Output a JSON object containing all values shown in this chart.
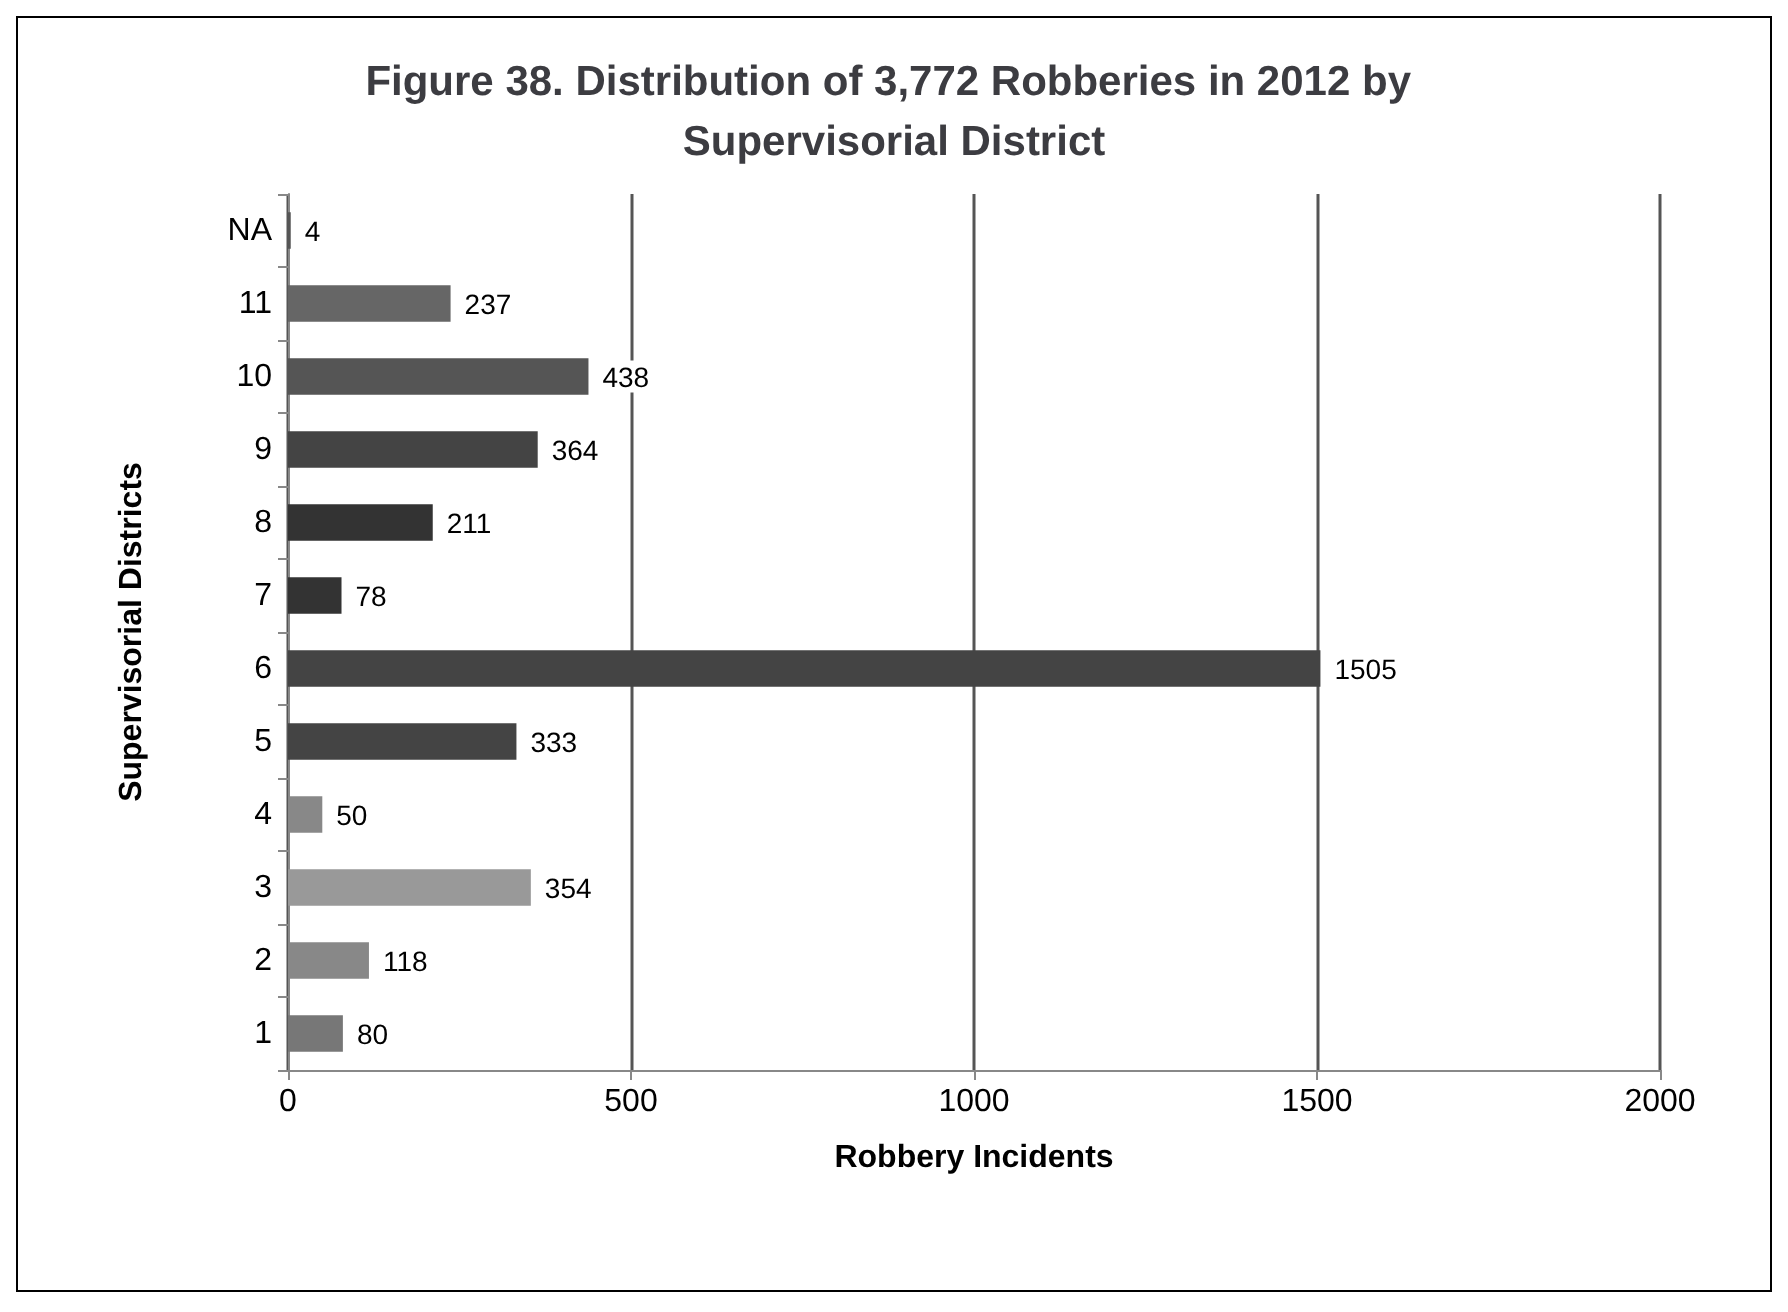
{
  "chart_data": {
    "type": "bar",
    "orientation": "horizontal",
    "title": "Figure 38. Distribution of 3,772 Robberies in 2012 by Supervisorial District",
    "categories": [
      "NA",
      "11",
      "10",
      "9",
      "8",
      "7",
      "6",
      "5",
      "4",
      "3",
      "2",
      "1"
    ],
    "values": [
      4,
      237,
      438,
      364,
      211,
      78,
      1505,
      333,
      50,
      354,
      118,
      80
    ],
    "colors": [
      "#555555",
      "#666666",
      "#555555",
      "#444444",
      "#333333",
      "#333333",
      "#444444",
      "#444444",
      "#888888",
      "#999999",
      "#888888",
      "#777777"
    ],
    "xlabel": "Robbery Incidents",
    "ylabel": "Supervisorial Districts",
    "xlim": [
      0,
      2000
    ],
    "xticks": [
      0,
      500,
      1000,
      1500,
      2000
    ],
    "grid": "x",
    "data_labels": true
  }
}
